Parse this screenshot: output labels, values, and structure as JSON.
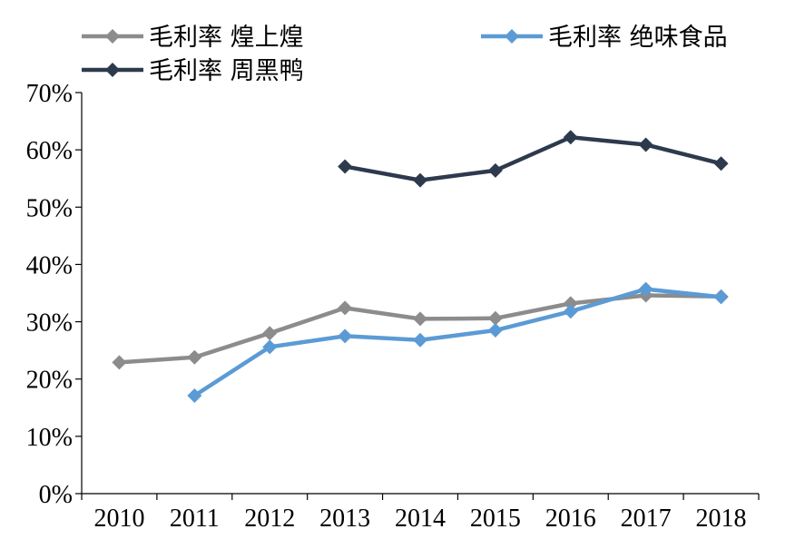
{
  "chart_data": {
    "type": "line",
    "title": "",
    "xlabel": "",
    "ylabel": "",
    "categories": [
      "2010",
      "2011",
      "2012",
      "2013",
      "2014",
      "2015",
      "2016",
      "2017",
      "2018"
    ],
    "ylim": [
      0,
      70
    ],
    "y_ticks": [
      "0%",
      "10%",
      "20%",
      "30%",
      "40%",
      "50%",
      "60%",
      "70%"
    ],
    "grid": false,
    "legend_position": "top",
    "series": [
      {
        "name": "毛利率 煌上煌",
        "color": "#8c8c8c",
        "values": [
          22.9,
          23.8,
          28.0,
          32.4,
          30.5,
          30.6,
          33.2,
          34.6,
          34.4
        ]
      },
      {
        "name": "毛利率 绝味食品",
        "color": "#5b9bd5",
        "values": [
          null,
          17.1,
          25.6,
          27.5,
          26.8,
          28.5,
          31.8,
          35.7,
          34.3
        ]
      },
      {
        "name": "毛利率 周黑鸭",
        "color": "#2d3a4e",
        "values": [
          null,
          null,
          null,
          57.1,
          54.7,
          56.4,
          62.2,
          60.9,
          57.6
        ]
      }
    ]
  }
}
